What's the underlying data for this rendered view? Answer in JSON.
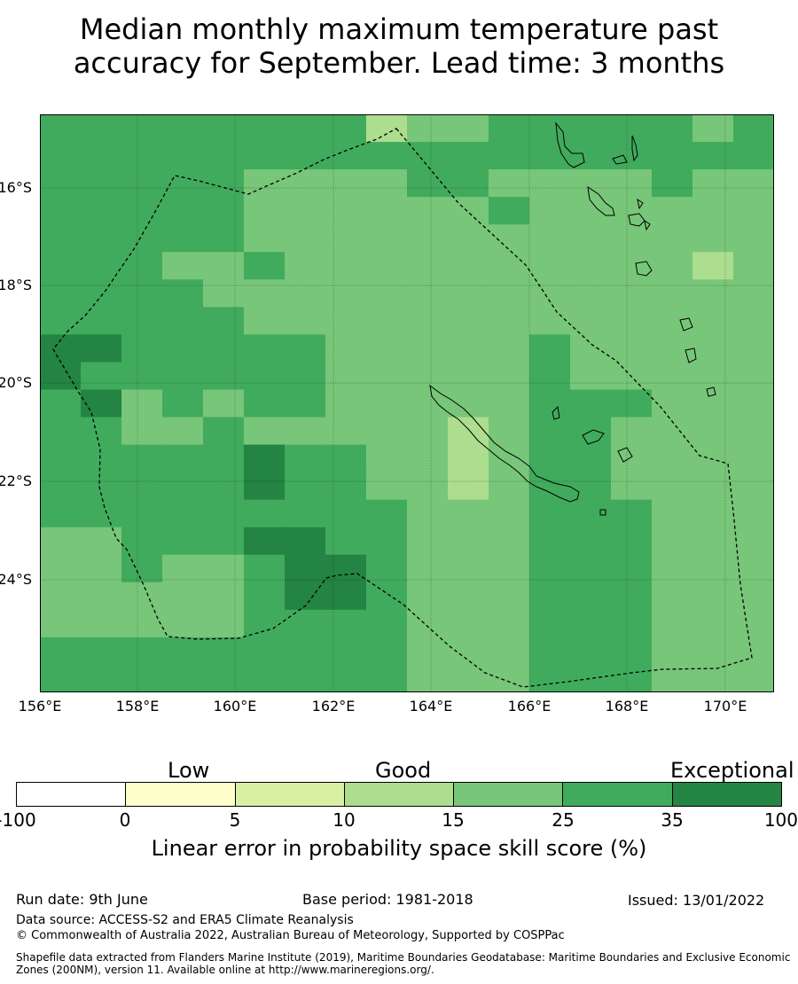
{
  "title_line1": "Median monthly maximum temperature past",
  "title_line2": "accuracy for September. Lead time: 3 months",
  "map": {
    "lat_ticks": [
      "16°S",
      "18°S",
      "20°S",
      "22°S",
      "24°S"
    ],
    "lon_ticks": [
      "156°E",
      "158°E",
      "160°E",
      "162°E",
      "164°E",
      "166°E",
      "168°E",
      "170°E"
    ]
  },
  "colorbar": {
    "words": [
      "Low",
      "Good",
      "Exceptional"
    ],
    "ticks": [
      "-100",
      "0",
      "5",
      "10",
      "15",
      "25",
      "35",
      "100"
    ],
    "colors": [
      "#ffffff",
      "#ffffcc",
      "#d9f0a3",
      "#addd8e",
      "#78c679",
      "#41ab5d",
      "#238443"
    ],
    "axis_label": "Linear error in probability space skill score (%)"
  },
  "footer": {
    "run_date": "Run date: 9th June",
    "base_period": "Base period: 1981-2018",
    "issued": "Issued: 13/01/2022",
    "data_source": "Data source: ACCESS-S2 and ERA5 Climate Reanalysis",
    "copyright": "© Commonwealth of Australia 2022, Australian Bureau of Meteorology, Supported by COSPPac",
    "shapefile": "Shapefile data extracted from Flanders Marine Institute (2019), Maritime Boundaries Geodatabase: Maritime Boundaries and Exclusive Economic Zones (200NM), version 11. Available online at http://www.marineregions.org/."
  }
}
